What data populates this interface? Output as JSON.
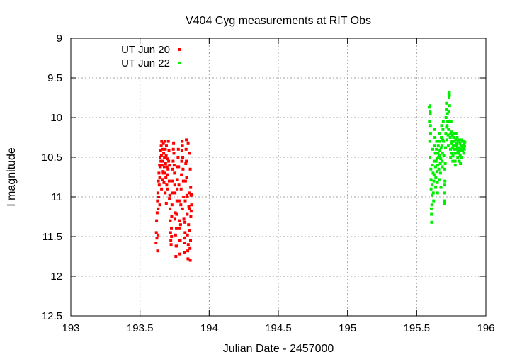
{
  "chart_data": {
    "type": "scatter",
    "title": "V404 Cyg measurements at RIT Obs",
    "xlabel": "Julian Date - 2457000",
    "ylabel": "I magnitude",
    "xlim": [
      193,
      196
    ],
    "ylim": [
      12.5,
      9
    ],
    "y_inverted": true,
    "grid": true,
    "legend_position": "top-left",
    "xticks": [
      "193",
      "193.5",
      "194",
      "194.5",
      "195",
      "195.5",
      "196"
    ],
    "yticks": [
      "9",
      "9.5",
      "10",
      "10.5",
      "11",
      "11.5",
      "12",
      "12.5"
    ],
    "series": [
      {
        "name": "UT Jun 20",
        "color": "#ff0000",
        "marker": "square",
        "points": [
          [
            193.616,
            11.58
          ],
          [
            193.618,
            11.45
          ],
          [
            193.62,
            11.3
          ],
          [
            193.622,
            11.52
          ],
          [
            193.624,
            11.2
          ],
          [
            193.626,
            11.05
          ],
          [
            193.627,
            11.68
          ],
          [
            193.629,
            10.95
          ],
          [
            193.631,
            11.15
          ],
          [
            193.633,
            10.8
          ],
          [
            193.635,
            11.0
          ],
          [
            193.637,
            10.7
          ],
          [
            193.639,
            10.85
          ],
          [
            193.641,
            10.6
          ],
          [
            193.643,
            10.75
          ],
          [
            193.645,
            10.5
          ],
          [
            193.647,
            10.62
          ],
          [
            193.649,
            10.42
          ],
          [
            193.651,
            10.55
          ],
          [
            193.653,
            10.35
          ],
          [
            193.655,
            10.48
          ],
          [
            193.657,
            10.3
          ],
          [
            193.659,
            10.6
          ],
          [
            193.661,
            10.4
          ],
          [
            193.663,
            10.78
          ],
          [
            193.665,
            10.55
          ],
          [
            193.667,
            10.68
          ],
          [
            193.669,
            10.32
          ],
          [
            193.671,
            10.45
          ],
          [
            193.673,
            10.82
          ],
          [
            193.675,
            10.62
          ],
          [
            193.677,
            10.5
          ],
          [
            193.679,
            10.7
          ],
          [
            193.681,
            10.3
          ],
          [
            193.683,
            10.4
          ],
          [
            193.685,
            10.58
          ],
          [
            193.687,
            10.75
          ],
          [
            193.689,
            10.48
          ],
          [
            193.691,
            10.35
          ],
          [
            193.693,
            10.85
          ],
          [
            193.695,
            10.62
          ],
          [
            193.697,
            10.52
          ],
          [
            193.699,
            10.72
          ],
          [
            193.701,
            10.9
          ],
          [
            193.703,
            10.65
          ],
          [
            193.705,
            10.3
          ],
          [
            193.707,
            10.55
          ],
          [
            193.709,
            10.42
          ],
          [
            193.711,
            10.8
          ],
          [
            193.713,
            10.6
          ],
          [
            193.715,
            10.98
          ],
          [
            193.717,
            11.15
          ],
          [
            193.719,
            11.3
          ],
          [
            193.721,
            11.45
          ],
          [
            193.723,
            11.55
          ],
          [
            193.725,
            11.6
          ],
          [
            193.727,
            11.4
          ],
          [
            193.729,
            11.25
          ],
          [
            193.731,
            11.1
          ],
          [
            193.733,
            10.95
          ],
          [
            193.735,
            10.8
          ],
          [
            193.737,
            10.65
          ],
          [
            193.739,
            10.55
          ],
          [
            193.741,
            10.4
          ],
          [
            193.743,
            10.32
          ],
          [
            193.745,
            10.45
          ],
          [
            193.747,
            10.6
          ],
          [
            193.749,
            10.7
          ],
          [
            193.751,
            10.85
          ],
          [
            193.753,
            10.95
          ],
          [
            193.755,
            11.2
          ],
          [
            193.757,
            11.48
          ],
          [
            193.759,
            11.75
          ],
          [
            193.761,
            11.62
          ],
          [
            193.763,
            11.4
          ],
          [
            193.765,
            11.22
          ],
          [
            193.767,
            11.05
          ],
          [
            193.769,
            10.9
          ],
          [
            193.771,
            10.78
          ],
          [
            193.773,
            10.62
          ],
          [
            193.775,
            10.5
          ],
          [
            193.777,
            10.4
          ],
          [
            193.779,
            10.62
          ],
          [
            193.781,
            10.85
          ],
          [
            193.783,
            11.05
          ],
          [
            193.785,
            11.3
          ],
          [
            193.787,
            11.55
          ],
          [
            193.789,
            11.72
          ],
          [
            193.791,
            11.55
          ],
          [
            193.793,
            11.35
          ],
          [
            193.795,
            11.1
          ],
          [
            193.797,
            10.9
          ],
          [
            193.799,
            10.72
          ],
          [
            193.801,
            10.55
          ],
          [
            193.803,
            10.42
          ],
          [
            193.805,
            10.3
          ],
          [
            193.807,
            10.35
          ],
          [
            193.809,
            10.5
          ],
          [
            193.811,
            10.65
          ],
          [
            193.813,
            10.8
          ],
          [
            193.815,
            11.0
          ],
          [
            193.817,
            11.28
          ],
          [
            193.819,
            11.52
          ],
          [
            193.821,
            11.7
          ],
          [
            193.823,
            11.58
          ],
          [
            193.825,
            11.32
          ],
          [
            193.827,
            11.05
          ],
          [
            193.829,
            10.8
          ],
          [
            193.831,
            10.58
          ],
          [
            193.833,
            10.4
          ],
          [
            193.835,
            10.55
          ],
          [
            193.837,
            10.75
          ],
          [
            193.839,
            10.98
          ],
          [
            193.841,
            11.22
          ],
          [
            193.843,
            11.48
          ],
          [
            193.845,
            11.68
          ],
          [
            193.847,
            11.78
          ],
          [
            193.849,
            11.6
          ],
          [
            193.851,
            11.35
          ],
          [
            193.853,
            11.12
          ],
          [
            193.855,
            10.95
          ],
          [
            193.857,
            11.15
          ],
          [
            193.859,
            11.42
          ],
          [
            193.861,
            11.65
          ],
          [
            193.863,
            11.8
          ],
          [
            193.865,
            11.55
          ],
          [
            193.867,
            11.25
          ],
          [
            193.869,
            10.98
          ],
          [
            193.835,
            10.28
          ],
          [
            193.848,
            10.32
          ],
          [
            193.859,
            10.45
          ],
          [
            193.863,
            10.65
          ],
          [
            193.866,
            10.88
          ],
          [
            193.87,
            11.18
          ],
          [
            193.873,
            11.1
          ],
          [
            193.876,
            10.97
          ],
          [
            193.63,
            11.48
          ],
          [
            193.643,
            11.1
          ],
          [
            193.656,
            10.9
          ],
          [
            193.668,
            10.7
          ],
          [
            193.682,
            10.95
          ],
          [
            193.69,
            11.08
          ],
          [
            193.712,
            11.02
          ],
          [
            193.728,
            11.5
          ],
          [
            193.752,
            11.28
          ],
          [
            193.768,
            11.62
          ],
          [
            193.786,
            11.4
          ],
          [
            193.808,
            11.15
          ],
          [
            193.826,
            11.45
          ],
          [
            193.842,
            11.0
          ]
        ]
      },
      {
        "name": "UT Jun 22",
        "color": "#00ee00",
        "marker": "square",
        "points": [
          [
            195.59,
            9.87
          ],
          [
            195.592,
            10.05
          ],
          [
            195.594,
            10.3
          ],
          [
            195.596,
            10.5
          ],
          [
            195.598,
            9.95
          ],
          [
            195.6,
            10.2
          ],
          [
            195.602,
            10.65
          ],
          [
            195.604,
            10.9
          ],
          [
            195.606,
            11.15
          ],
          [
            195.608,
            11.32
          ],
          [
            195.61,
            11.1
          ],
          [
            195.612,
            10.85
          ],
          [
            195.614,
            10.6
          ],
          [
            195.616,
            10.4
          ],
          [
            195.618,
            10.7
          ],
          [
            195.62,
            10.95
          ],
          [
            195.622,
            11.05
          ],
          [
            195.624,
            10.8
          ],
          [
            195.626,
            10.55
          ],
          [
            195.628,
            10.35
          ],
          [
            195.63,
            10.15
          ],
          [
            195.632,
            10.25
          ],
          [
            195.634,
            10.45
          ],
          [
            195.636,
            10.62
          ],
          [
            195.638,
            10.75
          ],
          [
            195.64,
            10.55
          ],
          [
            195.642,
            10.4
          ],
          [
            195.644,
            10.3
          ],
          [
            195.646,
            10.52
          ],
          [
            195.648,
            10.68
          ],
          [
            195.65,
            10.82
          ],
          [
            195.652,
            10.6
          ],
          [
            195.654,
            10.45
          ],
          [
            195.656,
            10.35
          ],
          [
            195.658,
            10.5
          ],
          [
            195.66,
            10.65
          ],
          [
            195.662,
            10.48
          ],
          [
            195.664,
            10.3
          ],
          [
            195.666,
            10.2
          ],
          [
            195.668,
            10.42
          ],
          [
            195.67,
            10.58
          ],
          [
            195.672,
            10.7
          ],
          [
            195.674,
            10.52
          ],
          [
            195.676,
            10.38
          ],
          [
            195.678,
            10.25
          ],
          [
            195.68,
            10.1
          ],
          [
            195.682,
            10.35
          ],
          [
            195.684,
            10.55
          ],
          [
            195.686,
            10.45
          ],
          [
            195.688,
            10.28
          ],
          [
            195.69,
            10.15
          ],
          [
            195.692,
            10.05
          ],
          [
            195.694,
            10.3
          ],
          [
            195.696,
            10.48
          ],
          [
            195.698,
            10.65
          ],
          [
            195.7,
            10.85
          ],
          [
            195.702,
            11.05
          ],
          [
            195.704,
            10.8
          ],
          [
            195.706,
            10.58
          ],
          [
            195.708,
            10.38
          ],
          [
            195.71,
            10.2
          ],
          [
            195.712,
            10.0
          ],
          [
            195.714,
            9.9
          ],
          [
            195.716,
            10.12
          ],
          [
            195.718,
            10.28
          ],
          [
            195.72,
            10.1
          ],
          [
            195.722,
            9.95
          ],
          [
            195.724,
            10.05
          ],
          [
            195.726,
            10.22
          ],
          [
            195.728,
            10.35
          ],
          [
            195.73,
            10.15
          ],
          [
            195.732,
            9.92
          ],
          [
            195.734,
            9.75
          ],
          [
            195.736,
            9.68
          ],
          [
            195.738,
            9.85
          ],
          [
            195.74,
            10.05
          ],
          [
            195.742,
            10.25
          ],
          [
            195.744,
            10.4
          ],
          [
            195.746,
            10.2
          ],
          [
            195.748,
            10.05
          ],
          [
            195.75,
            10.18
          ],
          [
            195.752,
            10.32
          ],
          [
            195.754,
            10.45
          ],
          [
            195.756,
            10.3
          ],
          [
            195.758,
            10.22
          ],
          [
            195.76,
            10.38
          ],
          [
            195.762,
            10.48
          ],
          [
            195.764,
            10.35
          ],
          [
            195.766,
            10.25
          ],
          [
            195.768,
            10.4
          ],
          [
            195.77,
            10.3
          ],
          [
            195.772,
            10.2
          ],
          [
            195.774,
            10.35
          ],
          [
            195.776,
            10.45
          ],
          [
            195.778,
            10.55
          ],
          [
            195.78,
            10.4
          ],
          [
            195.782,
            10.28
          ],
          [
            195.784,
            10.2
          ],
          [
            195.786,
            10.32
          ],
          [
            195.788,
            10.45
          ],
          [
            195.79,
            10.35
          ],
          [
            195.792,
            10.25
          ],
          [
            195.794,
            10.38
          ],
          [
            195.796,
            10.5
          ],
          [
            195.798,
            10.42
          ],
          [
            195.8,
            10.3
          ],
          [
            195.802,
            10.38
          ],
          [
            195.804,
            10.28
          ],
          [
            195.806,
            10.45
          ],
          [
            195.808,
            10.55
          ],
          [
            195.81,
            10.4
          ],
          [
            195.812,
            10.32
          ],
          [
            195.814,
            10.48
          ],
          [
            195.816,
            10.58
          ],
          [
            195.818,
            10.42
          ],
          [
            195.82,
            10.35
          ],
          [
            195.822,
            10.28
          ],
          [
            195.824,
            10.4
          ],
          [
            195.826,
            10.5
          ],
          [
            195.828,
            10.38
          ],
          [
            195.83,
            10.3
          ],
          [
            195.832,
            10.42
          ],
          [
            195.834,
            10.35
          ],
          [
            195.836,
            10.3
          ],
          [
            195.838,
            10.38
          ],
          [
            195.84,
            10.45
          ],
          [
            195.842,
            10.33
          ],
          [
            195.844,
            10.4
          ],
          [
            195.846,
            10.36
          ],
          [
            195.848,
            10.31
          ],
          [
            195.595,
            9.85
          ],
          [
            195.597,
            9.92
          ],
          [
            195.599,
            10.1
          ],
          [
            195.603,
            10.78
          ],
          [
            195.607,
            11.22
          ],
          [
            195.611,
            10.98
          ],
          [
            195.625,
            10.72
          ],
          [
            195.637,
            10.88
          ],
          [
            195.651,
            10.95
          ],
          [
            195.663,
            10.78
          ],
          [
            195.675,
            10.88
          ],
          [
            195.685,
            10.62
          ],
          [
            195.699,
            10.95
          ],
          [
            195.703,
            11.08
          ],
          [
            195.715,
            9.82
          ],
          [
            195.733,
            9.7
          ],
          [
            195.737,
            9.72
          ],
          [
            195.745,
            10.5
          ],
          [
            195.761,
            10.55
          ],
          [
            195.779,
            10.6
          ]
        ]
      }
    ]
  }
}
